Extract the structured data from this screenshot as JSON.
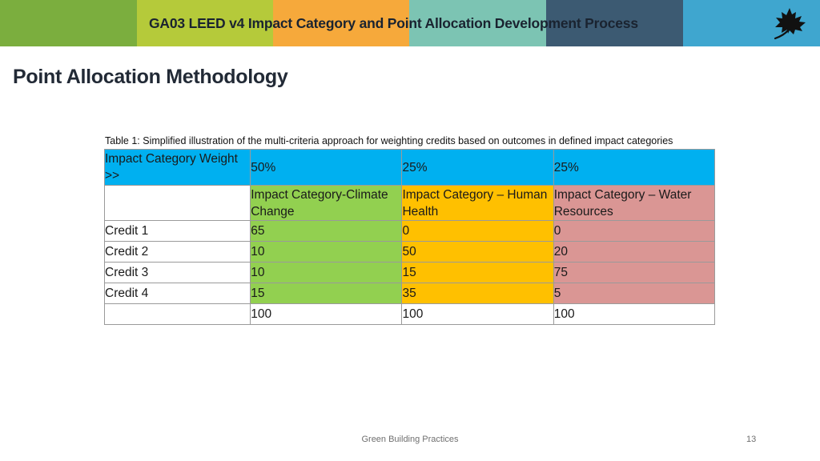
{
  "header": {
    "title": "GA03 LEED v4 Impact Category and Point Allocation Development Process",
    "colors": [
      "#7bae3e",
      "#b5ca3a",
      "#f6a93b",
      "#7cc4b3",
      "#3c5a72",
      "#3fa6cf"
    ],
    "logo_icon": "maple-leaf-icon"
  },
  "heading": "Point Allocation Methodology",
  "table": {
    "caption": "Table 1: Simplified illustration of the multi-criteria approach for weighting credits based on outcomes in defined impact categories",
    "weight_label": "Impact Category Weight >>",
    "weights": [
      "50%",
      "25%",
      "25%"
    ],
    "categories": [
      "Impact Category-Climate Change",
      "Impact Category – Human Health",
      "Impact Category – Water Resources"
    ],
    "rows": [
      {
        "label": "Credit 1",
        "values": [
          "65",
          "0",
          "0"
        ]
      },
      {
        "label": "Credit 2",
        "values": [
          "10",
          "50",
          "20"
        ]
      },
      {
        "label": "Credit 3",
        "values": [
          "10",
          "15",
          "75"
        ]
      },
      {
        "label": "Credit 4",
        "values": [
          "15",
          "35",
          "5"
        ]
      }
    ],
    "totals": [
      "100",
      "100",
      "100"
    ],
    "column_colors": {
      "header": "#00b0f0",
      "climate": "#92d050",
      "health": "#ffc000",
      "water": "#da9694"
    }
  },
  "footer": {
    "text": "Green Building Practices",
    "page_number": "13"
  }
}
